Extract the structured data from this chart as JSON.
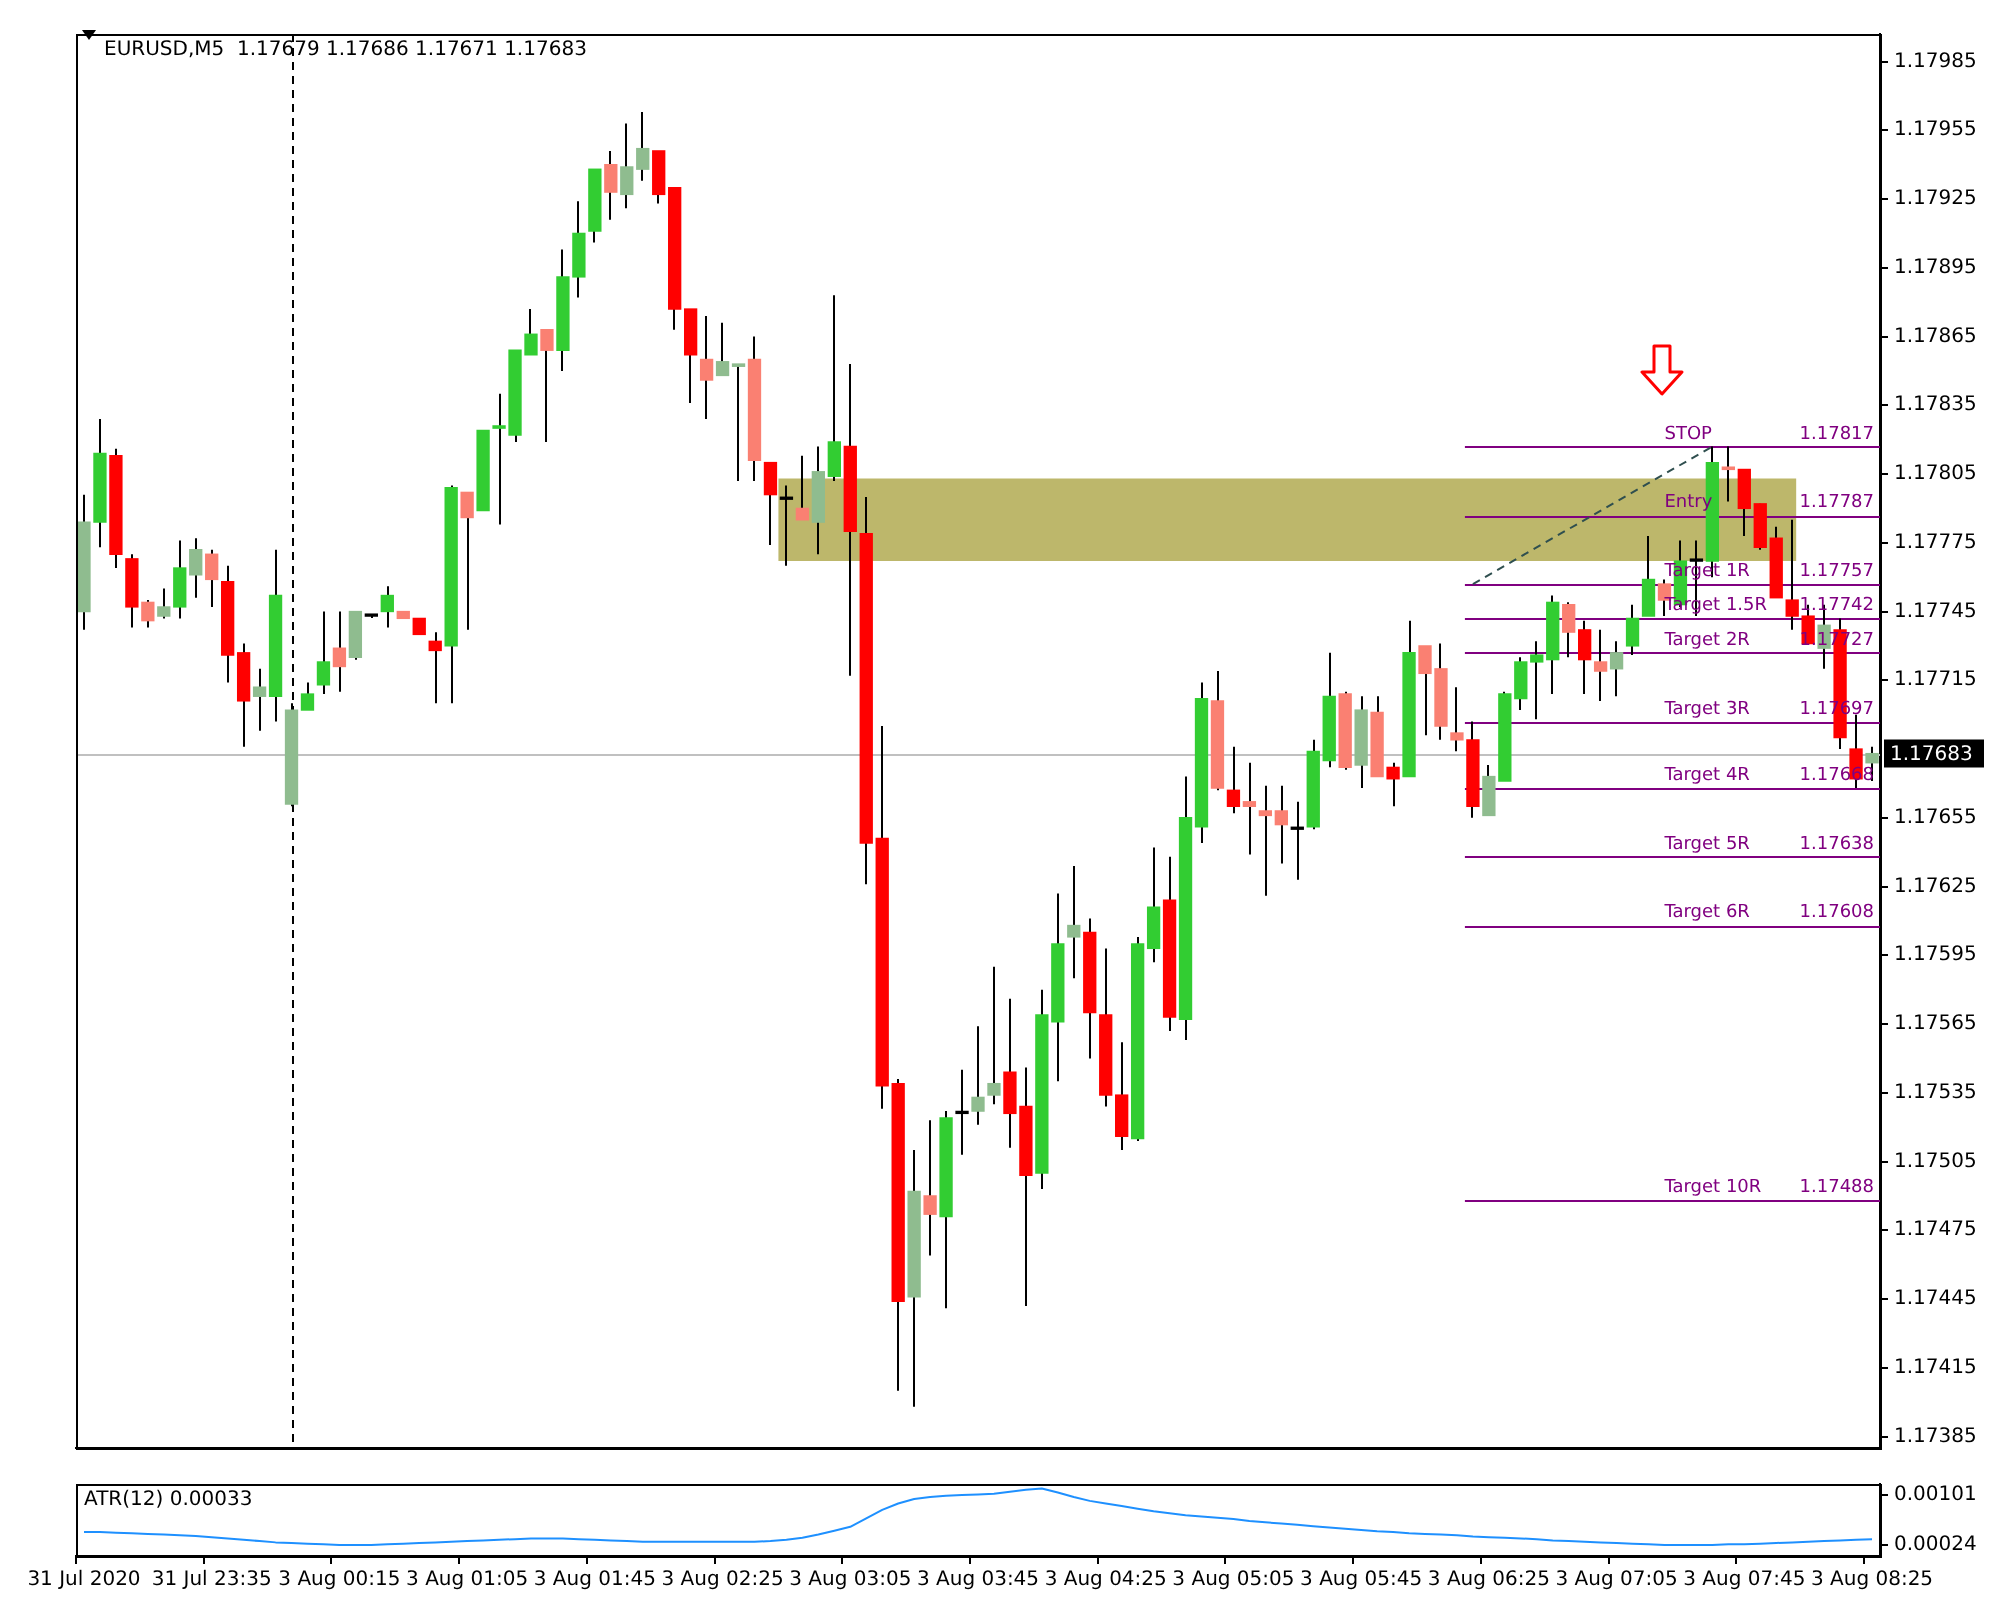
{
  "chart_data": [
    {
      "type": "candlestick",
      "title": "EURUSD,M5  1.17679 1.17686 1.17671 1.17683",
      "categories": [
        null,
        null,
        null,
        null,
        null,
        null,
        null,
        null,
        null,
        null,
        null,
        null,
        null,
        null,
        null,
        null,
        null,
        null,
        null,
        null,
        null,
        null,
        null,
        null,
        null,
        null,
        null,
        null,
        null,
        null,
        null,
        null,
        null,
        null,
        null,
        null,
        null,
        null,
        null,
        null,
        null,
        null,
        null,
        null,
        null,
        null,
        null,
        null,
        null,
        null,
        null,
        null,
        null,
        null,
        null,
        null,
        null,
        null,
        null,
        null,
        null,
        null,
        null,
        null,
        null,
        null,
        null,
        null,
        null,
        null,
        null,
        null,
        null,
        null,
        null,
        null,
        null,
        null,
        null,
        null,
        null,
        null,
        null,
        null,
        null,
        null,
        null,
        null,
        null,
        null,
        null,
        null,
        null,
        null,
        null,
        null,
        null,
        null,
        null,
        null,
        null,
        null,
        null,
        null,
        null,
        null,
        null,
        null,
        null,
        null,
        null,
        null,
        null
      ],
      "ohlc": [
        [
          1.17745,
          1.17796,
          1.17737,
          1.17784
        ],
        [
          1.17784,
          1.17829,
          1.17773,
          1.17814
        ],
        [
          1.17813,
          1.17816,
          1.17764,
          1.1777
        ],
        [
          1.17768,
          1.1777,
          1.17738,
          1.17747
        ],
        [
          1.17749,
          1.1775,
          1.17738,
          1.17741
        ],
        [
          1.17743,
          1.17755,
          1.17742,
          1.17747
        ],
        [
          1.17747,
          1.17776,
          1.17742,
          1.17764
        ],
        [
          1.17761,
          1.17777,
          1.17751,
          1.17772
        ],
        [
          1.1777,
          1.17772,
          1.17747,
          1.17759
        ],
        [
          1.17758,
          1.17765,
          1.17714,
          1.17726
        ],
        [
          1.17727,
          1.17731,
          1.17686,
          1.17706
        ],
        [
          1.17708,
          1.1772,
          1.17693,
          1.17712
        ],
        [
          1.17708,
          1.17772,
          1.17697,
          1.17752
        ],
        [
          1.17661,
          1.17705,
          1.1766,
          1.17702
        ],
        [
          1.17702,
          1.17714,
          1.17702,
          1.17709
        ],
        [
          1.17713,
          1.17745,
          1.17709,
          1.17723
        ],
        [
          1.17729,
          1.17745,
          1.1771,
          1.17721
        ],
        [
          1.17725,
          1.17745,
          1.17724,
          1.17745
        ],
        [
          1.17743,
          1.17743,
          1.17743,
          1.17743
        ],
        [
          1.17745,
          1.17756,
          1.17738,
          1.17752
        ],
        [
          1.17745,
          1.17745,
          1.17742,
          1.17742
        ],
        [
          1.17742,
          1.17742,
          1.17735,
          1.17735
        ],
        [
          1.17732,
          1.17736,
          1.17705,
          1.17728
        ],
        [
          1.1773,
          1.178,
          1.17705,
          1.17799
        ],
        [
          1.17797,
          1.17797,
          1.17737,
          1.17786
        ],
        [
          1.17789,
          1.17824,
          1.17789,
          1.17824
        ],
        [
          1.17825,
          1.1784,
          1.17783,
          1.17826
        ],
        [
          1.17822,
          1.17859,
          1.17819,
          1.17859
        ],
        [
          1.17857,
          1.17877,
          1.17857,
          1.17866
        ],
        [
          1.17868,
          1.17868,
          1.17819,
          1.17859
        ],
        [
          1.17859,
          1.17903,
          1.1785,
          1.17891
        ],
        [
          1.17891,
          1.17924,
          1.17882,
          1.1791
        ],
        [
          1.17911,
          1.17938,
          1.17906,
          1.17938
        ],
        [
          1.1794,
          1.17946,
          1.17916,
          1.17928
        ],
        [
          1.17927,
          1.17958,
          1.17921,
          1.17939
        ],
        [
          1.17938,
          1.17963,
          1.17933,
          1.17947
        ],
        [
          1.17946,
          1.17946,
          1.17923,
          1.17927
        ],
        [
          1.1793,
          1.1793,
          1.17868,
          1.17877
        ],
        [
          1.17877,
          1.17877,
          1.17836,
          1.17857
        ],
        [
          1.17855,
          1.17874,
          1.17829,
          1.17846
        ],
        [
          1.17848,
          1.17871,
          1.17848,
          1.17854
        ],
        [
          1.17852,
          1.17853,
          1.17802,
          1.17853
        ],
        [
          1.17855,
          1.17865,
          1.17802,
          1.17811
        ],
        [
          1.1781,
          1.1781,
          1.17774,
          1.17796
        ],
        [
          1.17794,
          1.178,
          1.17765,
          1.17794
        ],
        [
          1.1779,
          1.17813,
          1.17785,
          1.17785
        ],
        [
          1.17784,
          1.17817,
          1.1777,
          1.17806
        ],
        [
          1.17804,
          1.17883,
          1.17802,
          1.17819
        ],
        [
          1.17817,
          1.17853,
          1.17717,
          1.1778
        ],
        [
          1.17779,
          1.17795,
          1.17626,
          1.17644
        ],
        [
          1.17646,
          1.17695,
          1.17528,
          1.17538
        ],
        [
          1.17539,
          1.17541,
          1.17405,
          1.17444
        ],
        [
          1.17446,
          1.1751,
          1.17398,
          1.17492
        ],
        [
          1.1749,
          1.17523,
          1.17464,
          1.17482
        ],
        [
          1.17481,
          1.17527,
          1.17441,
          1.17524
        ],
        [
          1.17526,
          1.17545,
          1.17508,
          1.17526
        ],
        [
          1.17527,
          1.17564,
          1.17521,
          1.17533
        ],
        [
          1.17534,
          1.1759,
          1.1753,
          1.17539
        ],
        [
          1.17544,
          1.17576,
          1.17511,
          1.17526
        ],
        [
          1.17529,
          1.17546,
          1.17442,
          1.17499
        ],
        [
          1.175,
          1.1758,
          1.17493,
          1.17569
        ],
        [
          1.17566,
          1.17622,
          1.1754,
          1.176
        ],
        [
          1.17603,
          1.17634,
          1.17585,
          1.17608
        ],
        [
          1.17605,
          1.17611,
          1.1755,
          1.1757
        ],
        [
          1.17569,
          1.17598,
          1.17529,
          1.17534
        ],
        [
          1.17534,
          1.17557,
          1.1751,
          1.17516
        ],
        [
          1.17515,
          1.17603,
          1.17514,
          1.176
        ],
        [
          1.17598,
          1.17642,
          1.17592,
          1.17616
        ],
        [
          1.17619,
          1.17638,
          1.17562,
          1.17568
        ],
        [
          1.17567,
          1.17673,
          1.17558,
          1.17655
        ],
        [
          1.17651,
          1.17714,
          1.17644,
          1.17707
        ],
        [
          1.17706,
          1.17719,
          1.17667,
          1.17668
        ],
        [
          1.17667,
          1.17686,
          1.17657,
          1.1766
        ],
        [
          1.17662,
          1.17679,
          1.17639,
          1.1766
        ],
        [
          1.17658,
          1.17669,
          1.17621,
          1.17656
        ],
        [
          1.17658,
          1.17669,
          1.17635,
          1.17652
        ],
        [
          1.1765,
          1.17662,
          1.17628,
          1.1765
        ],
        [
          1.17651,
          1.17689,
          1.1765,
          1.17684
        ],
        [
          1.1768,
          1.17727,
          1.17677,
          1.17708
        ],
        [
          1.17709,
          1.1771,
          1.17676,
          1.17677
        ],
        [
          1.17678,
          1.17708,
          1.17668,
          1.17702
        ],
        [
          1.17701,
          1.17708,
          1.17673,
          1.17673
        ],
        [
          1.17677,
          1.17679,
          1.1766,
          1.17672
        ],
        [
          1.17673,
          1.17741,
          1.17673,
          1.17727
        ],
        [
          1.1773,
          1.1773,
          1.17691,
          1.17718
        ],
        [
          1.1772,
          1.17731,
          1.17689,
          1.17695
        ],
        [
          1.17692,
          1.17712,
          1.17684,
          1.17689
        ],
        [
          1.17689,
          1.17697,
          1.17655,
          1.1766
        ],
        [
          1.17656,
          1.17678,
          1.17656,
          1.17673
        ],
        [
          1.17671,
          1.1771,
          1.17671,
          1.17709
        ],
        [
          1.17707,
          1.17725,
          1.17702,
          1.17723
        ],
        [
          1.17723,
          1.17732,
          1.17698,
          1.17726
        ],
        [
          1.17724,
          1.17752,
          1.17709,
          1.17749
        ],
        [
          1.17748,
          1.17749,
          1.17725,
          1.17736
        ],
        [
          1.17737,
          1.17741,
          1.17709,
          1.17724
        ],
        [
          1.17723,
          1.17737,
          1.17706,
          1.17719
        ],
        [
          1.1772,
          1.17732,
          1.17708,
          1.17727
        ],
        [
          1.1773,
          1.17748,
          1.17726,
          1.17742
        ],
        [
          1.17743,
          1.17778,
          1.17743,
          1.17759
        ],
        [
          1.17757,
          1.17759,
          1.17743,
          1.1775
        ],
        [
          1.17748,
          1.17776,
          1.17747,
          1.17767
        ],
        [
          1.17767,
          1.17776,
          1.17743,
          1.17767
        ],
        [
          1.17767,
          1.17817,
          1.1776,
          1.1781
        ],
        [
          1.17808,
          1.17817,
          1.17793,
          1.17807
        ],
        [
          1.17807,
          1.17807,
          1.17778,
          1.1779
        ],
        [
          1.17792,
          1.17792,
          1.17772,
          1.17773
        ],
        [
          1.17777,
          1.17782,
          1.17751,
          1.17751
        ],
        [
          1.1775,
          1.17785,
          1.17737,
          1.17743
        ],
        [
          1.17743,
          1.17748,
          1.17731,
          1.17731
        ],
        [
          1.17729,
          1.17748,
          1.1772,
          1.17739
        ],
        [
          1.17737,
          1.17742,
          1.17685,
          1.1769
        ],
        [
          1.17685,
          1.177,
          1.17668,
          1.17672
        ],
        [
          1.17679,
          1.17686,
          1.17671,
          1.17683
        ]
      ],
      "colors": [
        "#8fbc8f",
        "#32cd32",
        "#ff0000",
        "#ff0000",
        "#fa8072",
        "#8fbc8f",
        "#32cd32",
        "#8fbc8f",
        "#fa8072",
        "#ff0000",
        "#ff0000",
        "#8fbc8f",
        "#32cd32",
        "#8fbc8f",
        "#32cd32",
        "#32cd32",
        "#fa8072",
        "#8fbc8f",
        "#000000",
        "#32cd32",
        "#fa8072",
        "#ff0000",
        "#ff0000",
        "#32cd32",
        "#fa8072",
        "#32cd32",
        "#32cd32",
        "#32cd32",
        "#32cd32",
        "#fa8072",
        "#32cd32",
        "#32cd32",
        "#32cd32",
        "#fa8072",
        "#8fbc8f",
        "#8fbc8f",
        "#ff0000",
        "#ff0000",
        "#ff0000",
        "#fa8072",
        "#8fbc8f",
        "#8fbc8f",
        "#fa8072",
        "#ff0000",
        "#000000",
        "#fa8072",
        "#8fbc8f",
        "#32cd32",
        "#ff0000",
        "#ff0000",
        "#ff0000",
        "#ff0000",
        "#8fbc8f",
        "#fa8072",
        "#32cd32",
        "#000000",
        "#8fbc8f",
        "#8fbc8f",
        "#ff0000",
        "#ff0000",
        "#32cd32",
        "#32cd32",
        "#8fbc8f",
        "#ff0000",
        "#ff0000",
        "#ff0000",
        "#32cd32",
        "#32cd32",
        "#ff0000",
        "#32cd32",
        "#32cd32",
        "#fa8072",
        "#ff0000",
        "#fa8072",
        "#fa8072",
        "#fa8072",
        "#000000",
        "#32cd32",
        "#32cd32",
        "#fa8072",
        "#8fbc8f",
        "#fa8072",
        "#ff0000",
        "#32cd32",
        "#fa8072",
        "#fa8072",
        "#fa8072",
        "#ff0000",
        "#8fbc8f",
        "#32cd32",
        "#32cd32",
        "#32cd32",
        "#32cd32",
        "#fa8072",
        "#ff0000",
        "#fa8072",
        "#8fbc8f",
        "#32cd32",
        "#32cd32",
        "#fa8072",
        "#32cd32",
        "#000000",
        "#32cd32",
        "#fa8072",
        "#ff0000",
        "#ff0000",
        "#ff0000",
        "#ff0000",
        "#ff0000",
        "#8fbc8f",
        "#ff0000",
        "#ff0000",
        "#8fbc8f"
      ],
      "series": [
        {
          "type": "line",
          "color": "#2f4f4f",
          "line_style": "dashed",
          "values": [
            null,
            null,
            null,
            null,
            null,
            null,
            null,
            null,
            null,
            null,
            null,
            null,
            null,
            null,
            null,
            null,
            null,
            null,
            null,
            null,
            null,
            null,
            null,
            null,
            null,
            null,
            null,
            null,
            null,
            null,
            null,
            null,
            null,
            null,
            null,
            null,
            null,
            null,
            null,
            null,
            null,
            null,
            null,
            null,
            null,
            null,
            null,
            null,
            null,
            null,
            null,
            null,
            null,
            null,
            null,
            null,
            null,
            null,
            null,
            null,
            null,
            null,
            null,
            null,
            null,
            null,
            null,
            null,
            null,
            null,
            null,
            null,
            null,
            null,
            null,
            null,
            null,
            null,
            null,
            null,
            null,
            null,
            null,
            null,
            null,
            null,
            null,
            1.17757,
            null,
            null,
            null,
            null,
            null,
            null,
            null,
            null,
            null,
            null,
            null,
            null,
            null,
            null,
            1.17817,
            null,
            null,
            null,
            null,
            null,
            null,
            null,
            null,
            null,
            null
          ]
        }
      ],
      "ylim": [
        1.1738,
        1.17997
      ],
      "yticks": [
        1.17385,
        1.17415,
        1.17445,
        1.17475,
        1.17505,
        1.17535,
        1.17565,
        1.17595,
        1.17625,
        1.17655,
        1.17715,
        1.17745,
        1.17775,
        1.17805,
        1.17835,
        1.17865,
        1.17895,
        1.17925,
        1.17955,
        1.17985
      ],
      "tick_labels": "y",
      "bands": [
        {
          "axis": "y",
          "from": 1.17767,
          "to": 1.17803,
          "color": "#bdb76b"
        }
      ],
      "ref_lines": [
        {
          "axis": "y",
          "value": 1.17817,
          "label": "STOP",
          "color": "#800080"
        },
        {
          "axis": "y",
          "value": 1.17787,
          "label": "Entry",
          "color": "#800080"
        },
        {
          "axis": "y",
          "value": 1.17757,
          "label": "Target 1R",
          "color": "#800080"
        },
        {
          "axis": "y",
          "value": 1.17742,
          "label": "Target 1.5R",
          "color": "#800080"
        },
        {
          "axis": "y",
          "value": 1.17727,
          "label": "Target 2R",
          "color": "#800080"
        },
        {
          "axis": "y",
          "value": 1.17697,
          "label": "Target 3R",
          "color": "#800080"
        },
        {
          "axis": "y",
          "value": 1.17668,
          "label": "Target 4R",
          "color": "#800080"
        },
        {
          "axis": "y",
          "value": 1.17638,
          "label": "Target 5R",
          "color": "#800080"
        },
        {
          "axis": "y",
          "value": 1.17608,
          "label": "Target 6R",
          "color": "#800080"
        },
        {
          "axis": "y",
          "value": 1.17488,
          "label": "Target 10R",
          "color": "#800080"
        },
        {
          "axis": "y",
          "value": 1.17683,
          "label": "1.17683",
          "color": "#c0c0c0"
        }
      ],
      "annotations": [
        {
          "text": "1.17817",
          "y": 1.17817
        },
        {
          "text": "1.17787",
          "y": 1.17787
        },
        {
          "text": "1.17757",
          "y": 1.17757
        },
        {
          "text": "1.17742",
          "y": 1.17742
        },
        {
          "text": "1.17727",
          "y": 1.17727
        },
        {
          "text": "1.17697",
          "y": 1.17697
        },
        {
          "text": "1.17668",
          "y": 1.17668
        },
        {
          "text": "1.17638",
          "y": 1.17638
        },
        {
          "text": "1.17608",
          "y": 1.17608
        },
        {
          "text": "1.17488",
          "y": 1.17488
        }
      ]
    },
    {
      "type": "line",
      "title": "ATR(12) 0.00033",
      "categories": [
        "31 Jul 2020",
        null,
        null,
        null,
        null,
        null,
        null,
        null,
        "31 Jul 23:35",
        null,
        null,
        null,
        null,
        null,
        null,
        null,
        "3 Aug 00:15",
        null,
        null,
        null,
        null,
        null,
        null,
        null,
        "3 Aug 01:05",
        null,
        null,
        null,
        null,
        null,
        null,
        null,
        "3 Aug 01:45",
        null,
        null,
        null,
        null,
        null,
        null,
        null,
        "3 Aug 02:25",
        null,
        null,
        null,
        null,
        null,
        null,
        null,
        "3 Aug 03:05",
        null,
        null,
        null,
        null,
        null,
        null,
        null,
        "3 Aug 03:45",
        null,
        null,
        null,
        null,
        null,
        null,
        null,
        "3 Aug 04:25",
        null,
        null,
        null,
        null,
        null,
        null,
        null,
        "3 Aug 05:05",
        null,
        null,
        null,
        null,
        null,
        null,
        null,
        "3 Aug 05:45",
        null,
        null,
        null,
        null,
        null,
        null,
        null,
        "3 Aug 06:25",
        null,
        null,
        null,
        null,
        null,
        null,
        null,
        "3 Aug 07:05",
        null,
        null,
        null,
        null,
        null,
        null,
        null,
        "3 Aug 07:45",
        null,
        null,
        null,
        null,
        null,
        null,
        null,
        "3 Aug 08:25"
      ],
      "series": [
        {
          "color": "#1e90ff",
          "values": [
            0.00044,
            0.00044,
            0.00043,
            0.00042,
            0.00041,
            0.0004,
            0.00039,
            0.00038,
            0.00036,
            0.00034,
            0.00032,
            0.0003,
            0.00028,
            0.00027,
            0.00026,
            0.00025,
            0.00024,
            0.00024,
            0.00024,
            0.00025,
            0.00026,
            0.00027,
            0.00028,
            0.00029,
            0.0003,
            0.00031,
            0.00032,
            0.00033,
            0.00034,
            0.00034,
            0.00034,
            0.00033,
            0.00032,
            0.00031,
            0.0003,
            0.00029,
            0.00029,
            0.00029,
            0.00029,
            0.00029,
            0.00029,
            0.00029,
            0.00029,
            0.0003,
            0.00032,
            0.00035,
            0.0004,
            0.00046,
            0.00052,
            0.00065,
            0.00078,
            0.00088,
            0.00095,
            0.00098,
            0.001,
            0.00101,
            0.00102,
            0.00103,
            0.00106,
            0.00109,
            0.00111,
            0.00105,
            0.00098,
            0.00092,
            0.00088,
            0.00084,
            0.0008,
            0.00076,
            0.00073,
            0.0007,
            0.00068,
            0.00066,
            0.00064,
            0.00061,
            0.00059,
            0.00057,
            0.00055,
            0.00053,
            0.00051,
            0.00049,
            0.00047,
            0.00045,
            0.00044,
            0.00042,
            0.00041,
            0.0004,
            0.00039,
            0.00037,
            0.00036,
            0.00035,
            0.00034,
            0.00033,
            0.00031,
            0.0003,
            0.00029,
            0.00028,
            0.00027,
            0.00026,
            0.00025,
            0.00024,
            0.00024,
            0.00024,
            0.00024,
            0.00025,
            0.00025,
            0.00026,
            0.00027,
            0.00028,
            0.00029,
            0.0003,
            0.00031,
            0.00032,
            0.00033
          ]
        }
      ],
      "ylim": [
        7e-05,
        0.00118
      ],
      "yticks": [
        0.00024,
        0.00101
      ]
    }
  ]
}
